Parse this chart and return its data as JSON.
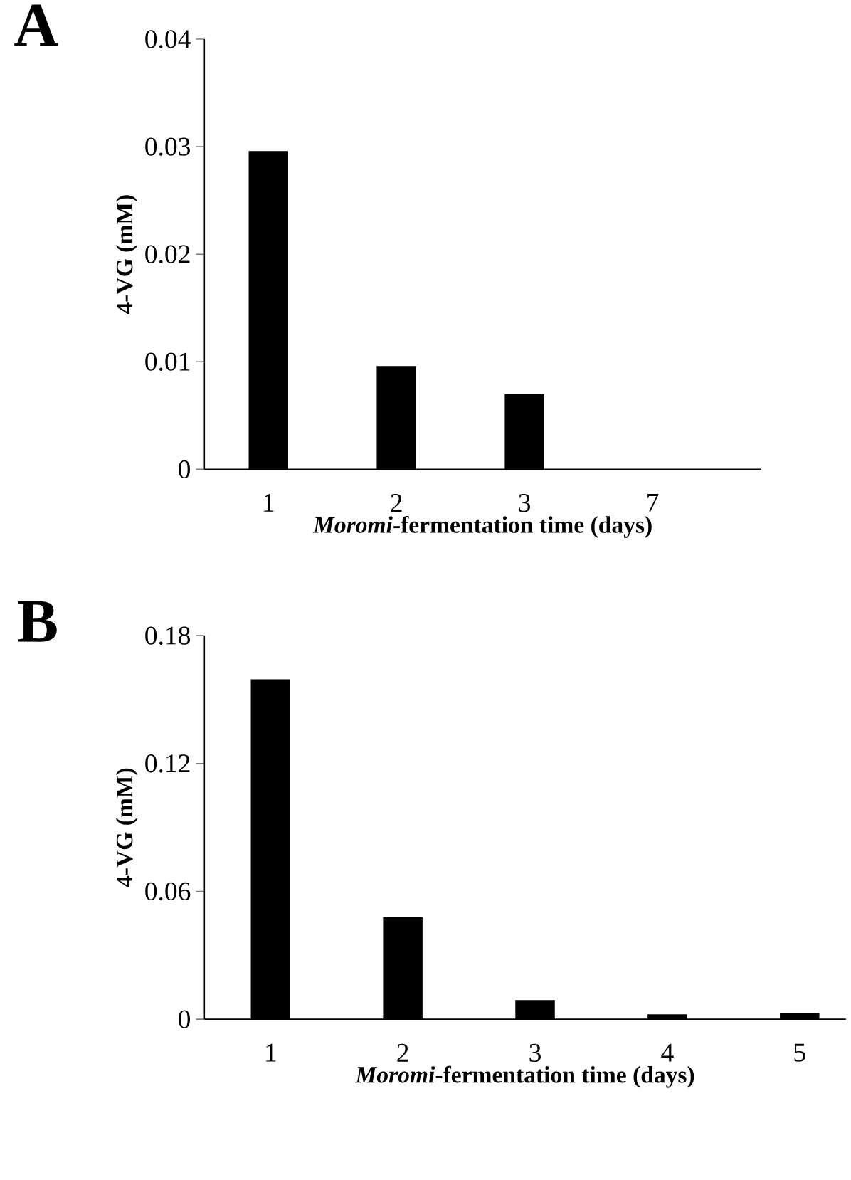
{
  "chart_data": [
    {
      "type": "bar",
      "title": "A",
      "categories": [
        "1",
        "2",
        "3",
        "7"
      ],
      "values": [
        0.0296,
        0.0096,
        0.007,
        0
      ],
      "color": "#000000",
      "xlabel": "*Moromi*-fermentation time (days)",
      "ylabel": "4-VG (mM)",
      "ylim": [
        0,
        0.04
      ],
      "yticks": [
        0,
        0.01,
        0.02,
        0.03,
        0.04
      ]
    },
    {
      "type": "bar",
      "title": "B",
      "categories": [
        "1",
        "2",
        "3",
        "4",
        "5"
      ],
      "values": [
        0.1595,
        0.0478,
        0.009,
        0.0023,
        0.003
      ],
      "color": "#000000",
      "xlabel": "*Moromi*-fermentation time (days)",
      "ylabel": "4-VG (mM)",
      "ylim": [
        0,
        0.18
      ],
      "yticks": [
        0,
        0.06,
        0.12,
        0.18
      ]
    }
  ]
}
